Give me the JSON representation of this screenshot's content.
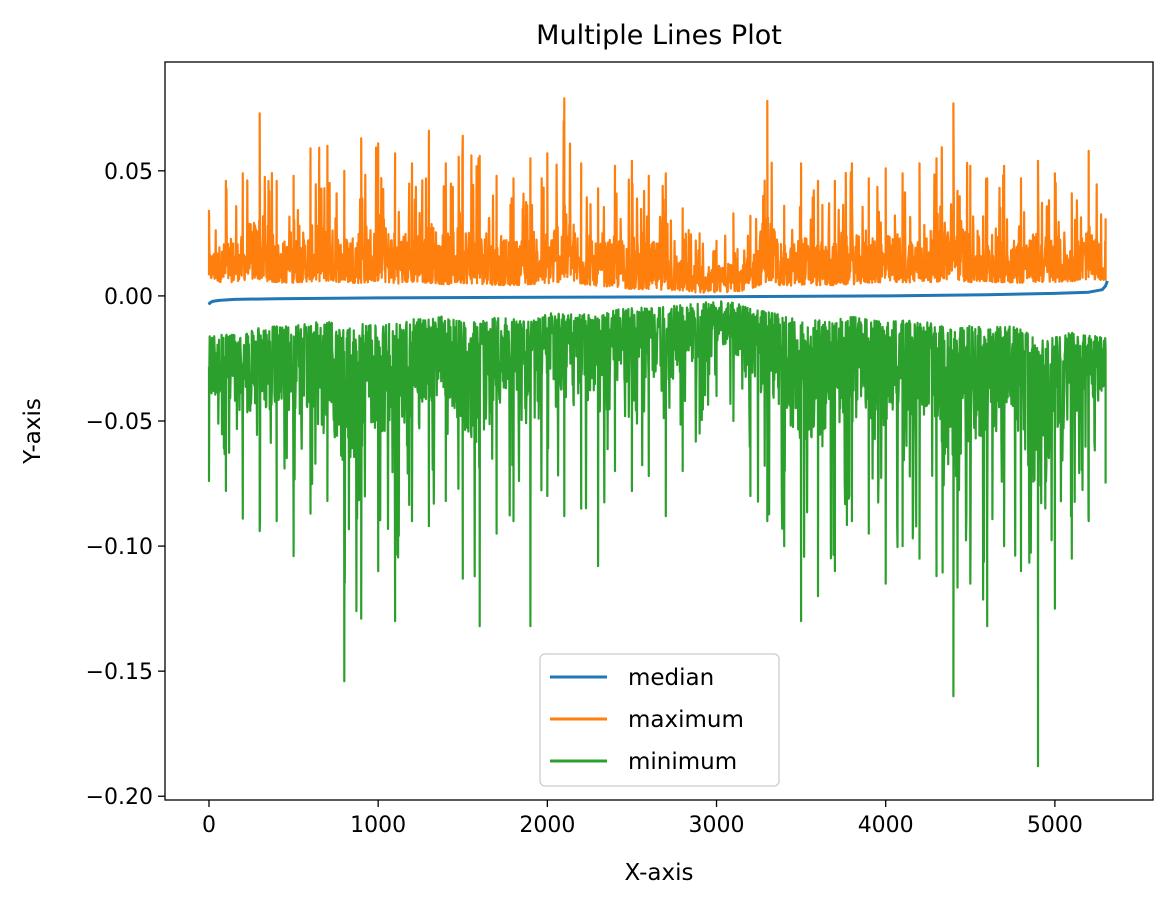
{
  "chart_data": {
    "type": "line",
    "title": "Multiple Lines Plot",
    "xlabel": "X-axis",
    "ylabel": "Y-axis",
    "xlim": [
      -260,
      5580
    ],
    "ylim": [
      -0.2015,
      0.0935
    ],
    "x_ticks": [
      0,
      1000,
      2000,
      3000,
      4000,
      5000
    ],
    "x_tick_labels": [
      "0",
      "1000",
      "2000",
      "3000",
      "4000",
      "5000"
    ],
    "y_ticks": [
      0.05,
      0.0,
      -0.05,
      -0.1,
      -0.15,
      -0.2
    ],
    "y_tick_labels": [
      "0.05",
      "0.00",
      "−0.05",
      "−0.10",
      "−0.15",
      "−0.20"
    ],
    "grid": false,
    "legend_position": "lower center",
    "series": [
      {
        "name": "median",
        "color": "#1f77b4",
        "x": [
          0,
          5,
          20,
          60,
          150,
          400,
          1000,
          2000,
          3000,
          4000,
          4600,
          5000,
          5200,
          5280,
          5300,
          5310
        ],
        "y": [
          -0.0035,
          -0.0028,
          -0.0022,
          -0.0018,
          -0.0014,
          -0.0011,
          -0.0008,
          -0.0005,
          -0.0003,
          0.0,
          0.0005,
          0.001,
          0.0015,
          0.0025,
          0.004,
          0.006
        ]
      },
      {
        "name": "maximum",
        "color": "#ff7f0e",
        "x": [
          0,
          100,
          200,
          300,
          400,
          500,
          600,
          700,
          800,
          900,
          1000,
          1100,
          1200,
          1300,
          1400,
          1500,
          1600,
          1700,
          1800,
          1900,
          2000,
          2100,
          2200,
          2300,
          2400,
          2500,
          2600,
          2700,
          2800,
          2900,
          3000,
          3100,
          3200,
          3300,
          3400,
          3500,
          3600,
          3700,
          3800,
          3900,
          4000,
          4100,
          4200,
          4300,
          4400,
          4500,
          4600,
          4700,
          4800,
          4900,
          5000,
          5100,
          5200,
          5300
        ],
        "y": [
          0.034,
          0.046,
          0.049,
          0.073,
          0.046,
          0.048,
          0.059,
          0.06,
          0.05,
          0.063,
          0.061,
          0.057,
          0.053,
          0.066,
          0.053,
          0.064,
          0.056,
          0.048,
          0.047,
          0.055,
          0.057,
          0.079,
          0.053,
          0.043,
          0.052,
          0.054,
          0.048,
          0.049,
          0.035,
          0.025,
          0.022,
          0.033,
          0.032,
          0.078,
          0.036,
          0.053,
          0.046,
          0.046,
          0.053,
          0.047,
          0.051,
          0.049,
          0.053,
          0.055,
          0.077,
          0.052,
          0.047,
          0.052,
          0.047,
          0.054,
          0.049,
          0.041,
          0.058,
          0.031
        ],
        "lower_envelope": [
          0.005,
          0.003,
          0.004,
          0.003,
          0.003,
          0.003,
          0.003,
          0.003,
          0.003,
          0.002,
          0.003,
          0.002,
          0.003,
          0.002,
          0.002,
          0.002,
          0.002,
          0.002,
          0.002,
          0.002,
          0.002,
          0.002,
          0.002,
          0.002,
          0.001,
          0.0,
          0.0,
          0.0,
          0.0,
          0.0,
          0.0,
          0.0,
          0.001,
          0.002,
          0.002,
          0.002,
          0.002,
          0.002,
          0.002,
          0.003,
          0.003,
          0.003,
          0.003,
          0.003,
          0.003,
          0.003,
          0.003,
          0.003,
          0.003,
          0.003,
          0.003,
          0.004,
          0.004,
          0.005
        ]
      },
      {
        "name": "minimum",
        "color": "#2ca02c",
        "x": [
          0,
          100,
          200,
          300,
          400,
          500,
          600,
          700,
          800,
          900,
          1000,
          1100,
          1200,
          1300,
          1400,
          1500,
          1600,
          1700,
          1800,
          1900,
          2000,
          2100,
          2200,
          2300,
          2400,
          2500,
          2600,
          2700,
          2800,
          2900,
          3000,
          3100,
          3200,
          3300,
          3400,
          3500,
          3600,
          3700,
          3800,
          3900,
          4000,
          4100,
          4200,
          4300,
          4400,
          4500,
          4600,
          4700,
          4800,
          4900,
          5000,
          5100,
          5200,
          5300
        ],
        "y": [
          -0.074,
          -0.078,
          -0.089,
          -0.094,
          -0.09,
          -0.104,
          -0.087,
          -0.082,
          -0.154,
          -0.129,
          -0.11,
          -0.13,
          -0.09,
          -0.092,
          -0.082,
          -0.113,
          -0.132,
          -0.095,
          -0.09,
          -0.132,
          -0.08,
          -0.088,
          -0.085,
          -0.108,
          -0.07,
          -0.078,
          -0.072,
          -0.088,
          -0.07,
          -0.055,
          -0.04,
          -0.05,
          -0.08,
          -0.09,
          -0.1,
          -0.13,
          -0.12,
          -0.11,
          -0.09,
          -0.095,
          -0.115,
          -0.1,
          -0.105,
          -0.112,
          -0.16,
          -0.115,
          -0.132,
          -0.1,
          -0.11,
          -0.188,
          -0.125,
          -0.105,
          -0.09,
          -0.075
        ],
        "upper_envelope": [
          -0.013,
          -0.012,
          -0.012,
          -0.008,
          -0.008,
          -0.007,
          -0.007,
          -0.006,
          -0.006,
          -0.005,
          -0.006,
          -0.005,
          -0.005,
          -0.005,
          -0.004,
          -0.005,
          -0.004,
          -0.004,
          -0.004,
          -0.004,
          -0.003,
          -0.003,
          -0.003,
          -0.003,
          -0.002,
          -0.001,
          -0.001,
          0.0,
          0.0,
          0.0,
          0.0,
          0.0,
          -0.001,
          -0.002,
          -0.003,
          -0.003,
          -0.004,
          -0.004,
          -0.004,
          -0.005,
          -0.005,
          -0.005,
          -0.005,
          -0.006,
          -0.006,
          -0.006,
          -0.007,
          -0.007,
          -0.008,
          -0.009,
          -0.01,
          -0.01,
          -0.012,
          -0.013
        ]
      }
    ]
  }
}
